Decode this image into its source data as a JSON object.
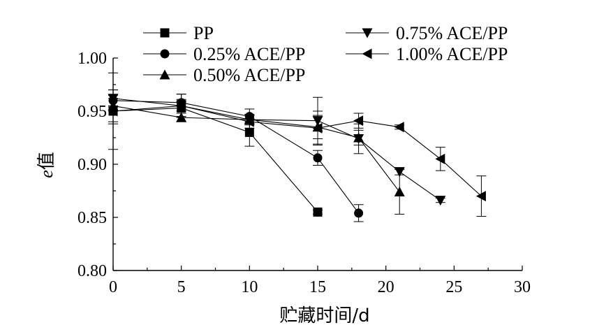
{
  "chart_data": {
    "type": "line",
    "xlabel": "贮藏时间/d",
    "ylabel_italic": "e",
    "ylabel_rest": "值",
    "xlim": [
      0,
      30
    ],
    "ylim": [
      0.8,
      1.0
    ],
    "x_ticks": [
      "0",
      "5",
      "10",
      "15",
      "20",
      "25",
      "30"
    ],
    "y_ticks": [
      "0.80",
      "0.85",
      "0.90",
      "0.95",
      "1.00"
    ],
    "grid": false,
    "legend_placement": "top",
    "series": [
      {
        "name": "PP",
        "marker": "square",
        "x": [
          0,
          5,
          10,
          15
        ],
        "y": [
          0.95,
          0.953,
          0.93,
          0.855
        ],
        "err": [
          0.012,
          0.008,
          0.013,
          0.002
        ]
      },
      {
        "name": "0.25% ACE/PP",
        "marker": "circle",
        "x": [
          0,
          5,
          10,
          15,
          18
        ],
        "y": [
          0.96,
          0.958,
          0.945,
          0.906,
          0.854
        ],
        "err": [
          0.005,
          0.008,
          0.007,
          0.007,
          0.008
        ]
      },
      {
        "name": "0.50% ACE/PP",
        "marker": "triangle-up",
        "x": [
          0,
          5,
          10,
          15,
          18,
          21
        ],
        "y": [
          0.955,
          0.944,
          0.942,
          0.935,
          0.925,
          0.874
        ],
        "err": [
          0.015,
          0.004,
          0.005,
          0.011,
          0.007,
          0.021
        ]
      },
      {
        "name": "0.75% ACE/PP",
        "marker": "triangle-down",
        "x": [
          0,
          5,
          10,
          15,
          18,
          21,
          24
        ],
        "y": [
          0.962,
          0.955,
          0.942,
          0.941,
          0.924,
          0.893,
          0.866
        ],
        "err": [
          0.008,
          0.011,
          0.004,
          0.022,
          0.014,
          0.003,
          0.002
        ]
      },
      {
        "name": "1.00% ACE/PP",
        "marker": "triangle-left",
        "x": [
          0,
          5,
          10,
          15,
          18,
          21,
          24,
          27
        ],
        "y": [
          0.95,
          0.955,
          0.94,
          0.934,
          0.941,
          0.935,
          0.905,
          0.87
        ],
        "err": [
          0.036,
          0.005,
          0.006,
          0.016,
          0.007,
          0.002,
          0.011,
          0.019
        ]
      }
    ]
  }
}
